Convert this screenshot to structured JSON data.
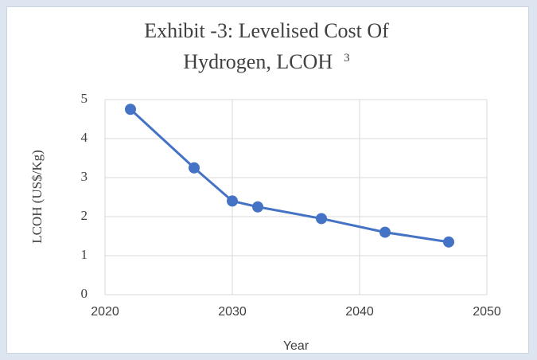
{
  "chart_data": {
    "type": "line",
    "title": "Exhibit -3: Levelised Cost Of Hydrogen, LCOH",
    "title_superscript": "3",
    "x_label": "Year",
    "y_label": "LCOH (US$/Kg)",
    "x": [
      2022,
      2027,
      2030,
      2032,
      2037,
      2042,
      2047
    ],
    "series": [
      {
        "name": "LCOH",
        "color": "#4472c4",
        "values": [
          4.75,
          3.25,
          2.4,
          2.25,
          1.95,
          1.6,
          1.35
        ]
      }
    ],
    "xlim": [
      2020,
      2050
    ],
    "xticks": [
      2020,
      2030,
      2040,
      2050
    ],
    "ylim": [
      0,
      5
    ],
    "yticks": [
      0,
      1,
      2,
      3,
      4,
      5
    ],
    "grid": true
  }
}
